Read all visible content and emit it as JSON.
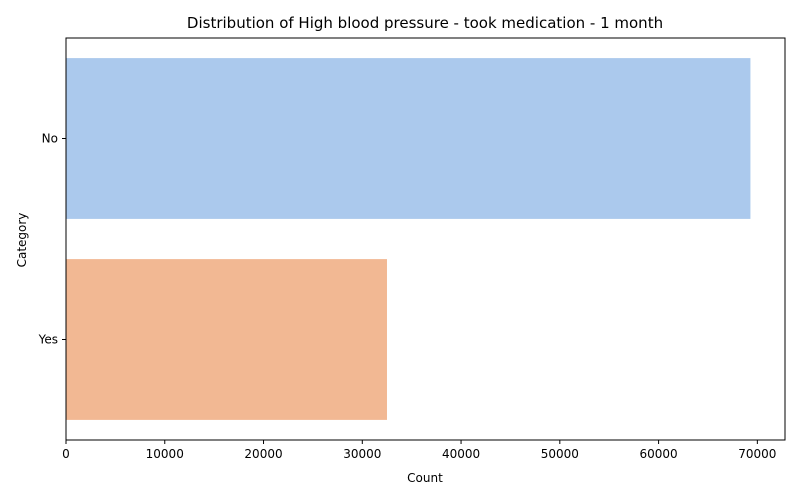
{
  "chart_data": {
    "type": "bar",
    "orientation": "horizontal",
    "title": "Distribution of High blood pressure - took medication - 1 month",
    "xlabel": "Count",
    "ylabel": "Category",
    "categories": [
      "No",
      "Yes"
    ],
    "values": [
      69300,
      32500
    ],
    "xlim": [
      0,
      72800
    ],
    "xticks": [
      0,
      10000,
      20000,
      30000,
      40000,
      50000,
      60000,
      70000
    ],
    "colors": [
      "#abc9ed",
      "#f2b893"
    ],
    "grid": false,
    "legend": "none"
  }
}
